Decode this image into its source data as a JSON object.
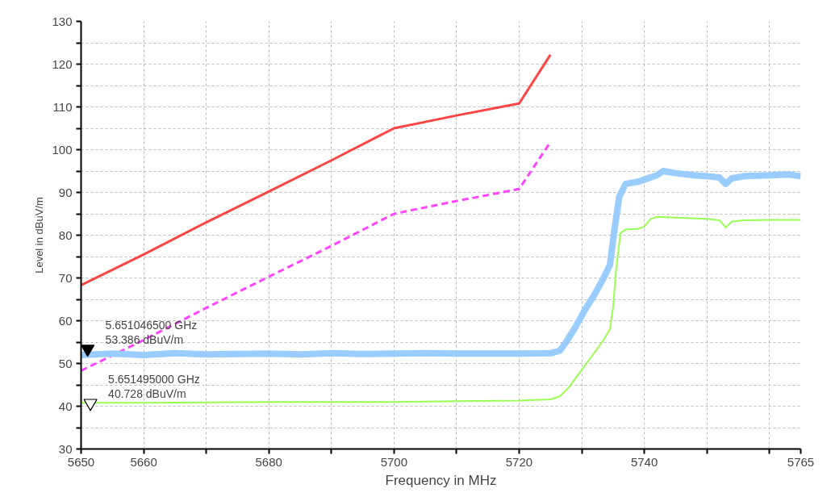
{
  "chart_data": {
    "type": "line",
    "xlabel": "Frequency in MHz",
    "ylabel": "Level in dBuV/m",
    "xlim": [
      5650,
      5765
    ],
    "ylim": [
      30,
      130
    ],
    "xticks": [
      5650,
      5660,
      {
        "value": 5670,
        "label": null
      },
      5680,
      {
        "value": 5690,
        "label": null
      },
      5700,
      {
        "value": 5710,
        "label": null
      },
      5720,
      {
        "value": 5730,
        "label": null
      },
      5740,
      {
        "value": 5750,
        "label": null
      },
      {
        "value": 5760,
        "label": null
      },
      5765
    ],
    "yticks": [
      30,
      {
        "value": 35,
        "label": null
      },
      40,
      {
        "value": 45,
        "label": null
      },
      50,
      {
        "value": 55,
        "label": null
      },
      60,
      {
        "value": 65,
        "label": null
      },
      70,
      {
        "value": 75,
        "label": null
      },
      80,
      {
        "value": 85,
        "label": null
      },
      90,
      {
        "value": 95,
        "label": null
      },
      100,
      {
        "value": 105,
        "label": null
      },
      110,
      {
        "value": 115,
        "label": null
      },
      120,
      {
        "value": 125,
        "label": null
      },
      130
    ],
    "grid": true,
    "series": [
      {
        "color": "#ff4444",
        "line_style": "solid",
        "x": [
          5650,
          5660,
          5670,
          5680,
          5690,
          5698,
          5700,
          5710,
          5720,
          5725
        ],
        "values": [
          68.3,
          75.5,
          83,
          90.2,
          97.5,
          103.5,
          105,
          108,
          110.8,
          122.2
        ]
      },
      {
        "color": "#ff44ff",
        "line_style": "dashed",
        "x": [
          5650,
          5660,
          5670,
          5680,
          5690,
          5698,
          5700,
          5710,
          5720,
          5725
        ],
        "values": [
          48.3,
          55.5,
          63,
          70.3,
          77.5,
          83.5,
          85,
          88,
          90.8,
          101.8
        ]
      },
      {
        "color": "#99ccff",
        "line_style": "solid",
        "x": [
          5650,
          5655,
          5660,
          5665,
          5670,
          5675,
          5680,
          5685,
          5690,
          5695,
          5700,
          5705,
          5710,
          5715,
          5720,
          5725,
          5726.5,
          5727.5,
          5729,
          5730.5,
          5732,
          5733.5,
          5734.5,
          5735.3,
          5736,
          5737,
          5739,
          5740,
          5742,
          5743,
          5745,
          5748,
          5750,
          5752,
          5753,
          5754,
          5756,
          5760,
          5763,
          5765
        ],
        "values": [
          52,
          52.3,
          52,
          52.4,
          52.1,
          52.2,
          52.3,
          52.1,
          52.4,
          52.2,
          52.3,
          52.4,
          52.3,
          52.3,
          52.3,
          52.4,
          53,
          55,
          58.5,
          62.5,
          66,
          70,
          73,
          82,
          89,
          92,
          92.5,
          93,
          94,
          95,
          94.5,
          94,
          93.8,
          93.5,
          92,
          93.3,
          93.8,
          94,
          94.2,
          93.8
        ]
      },
      {
        "color": "#99ff55",
        "line_style": "solid",
        "x": [
          5650,
          5660,
          5670,
          5680,
          5690,
          5700,
          5710,
          5720,
          5725,
          5726.5,
          5728,
          5730,
          5732,
          5733.5,
          5734.5,
          5735,
          5735.5,
          5736.2,
          5737,
          5739,
          5740,
          5741,
          5742,
          5745,
          5750,
          5752,
          5753,
          5754,
          5756,
          5760,
          5765
        ],
        "values": [
          40.8,
          40.8,
          40.9,
          41,
          41,
          41,
          41.2,
          41.3,
          41.6,
          42.3,
          44.5,
          48.5,
          52.5,
          55.5,
          58,
          63,
          72,
          80.5,
          81.3,
          81.5,
          82,
          83.8,
          84.3,
          84.1,
          83.8,
          83.5,
          81.8,
          83.2,
          83.5,
          83.6,
          83.6
        ]
      },
      {
        "type": "scatter",
        "marker": "triangle",
        "color": "#000000",
        "x": [
          5651.0465
        ],
        "values": [
          53.386
        ]
      },
      {
        "type": "scatter",
        "marker": "triangle",
        "color": "#ffffff",
        "x": [
          5651.495
        ],
        "values": [
          40.728
        ]
      }
    ],
    "annotations": [
      {
        "text": "5.651046500 GHz\n53.386 dBuV/m",
        "x": 5651.0465,
        "y": 53.386
      },
      {
        "text": "5.651495000 GHz\n40.728 dBuV/m",
        "x": 5651.495,
        "y": 40.728
      }
    ]
  }
}
